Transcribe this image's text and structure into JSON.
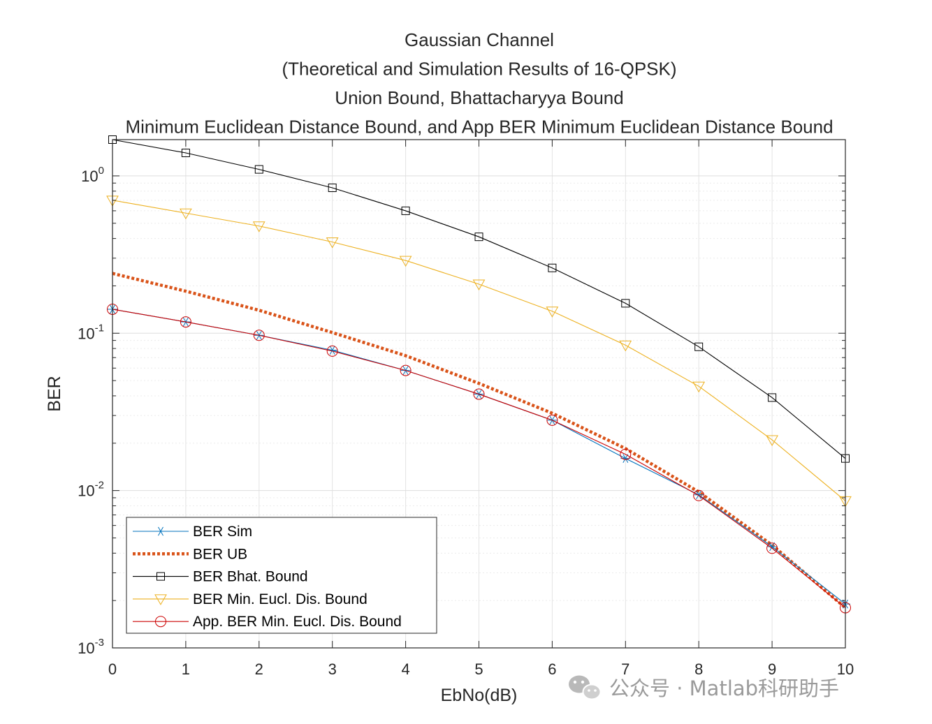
{
  "chart_data": {
    "type": "line",
    "title_lines": [
      "Gaussian Channel",
      "(Theoretical and Simulation Results of 16-QPSK)",
      "Union Bound, Bhattacharyya Bound",
      "Minimum Euclidean Distance Bound, and App BER Minimum Euclidean Distance Bound"
    ],
    "xlabel": "EbNo(dB)",
    "ylabel": "BER",
    "xlim": [
      0,
      10
    ],
    "ylim": [
      0.001,
      1.7
    ],
    "yscale": "log",
    "x_ticks": [
      "0",
      "1",
      "2",
      "3",
      "4",
      "5",
      "6",
      "7",
      "8",
      "9",
      "10"
    ],
    "y_ticks": [
      {
        "value": 1,
        "base": "10",
        "exp": "0"
      },
      {
        "value": 0.1,
        "base": "10",
        "exp": "-1"
      },
      {
        "value": 0.01,
        "base": "10",
        "exp": "-2"
      },
      {
        "value": 0.001,
        "base": "10",
        "exp": "-3"
      }
    ],
    "grid": true,
    "legend_position": "bottom-left",
    "x": [
      0,
      1,
      2,
      3,
      4,
      5,
      6,
      7,
      8,
      9,
      10
    ],
    "series": [
      {
        "name": "BER Sim",
        "color": "#0072BD",
        "marker": "asterisk",
        "line": "solid",
        "values": [
          0.142,
          0.118,
          0.097,
          0.078,
          0.058,
          0.041,
          0.028,
          0.016,
          0.0094,
          0.0044,
          0.0019
        ]
      },
      {
        "name": "BER UB",
        "color": "#D95319",
        "marker": "none",
        "line": "dotted",
        "values": [
          0.24,
          0.185,
          0.14,
          0.101,
          0.072,
          0.048,
          0.031,
          0.0185,
          0.0098,
          0.0045,
          0.0018
        ]
      },
      {
        "name": "BER Bhat. Bound",
        "color": "#000000",
        "marker": "square",
        "line": "solid",
        "values": [
          1.7,
          1.4,
          1.1,
          0.84,
          0.6,
          0.41,
          0.26,
          0.155,
          0.082,
          0.039,
          0.016
        ]
      },
      {
        "name": "BER Min. Eucl. Dis. Bound",
        "color": "#EDB120",
        "marker": "triangle-down",
        "line": "solid",
        "values": [
          0.7,
          0.58,
          0.48,
          0.38,
          0.29,
          0.205,
          0.138,
          0.084,
          0.046,
          0.021,
          0.0086
        ]
      },
      {
        "name": "App. BER Min. Eucl. Dis. Bound",
        "color": "#CC0000",
        "marker": "circle",
        "line": "solid",
        "values": [
          0.142,
          0.118,
          0.097,
          0.077,
          0.058,
          0.041,
          0.028,
          0.017,
          0.0093,
          0.0043,
          0.0018
        ]
      }
    ]
  },
  "watermark": {
    "text": "公众号 · Matlab科研助手",
    "icon": "wechat-icon"
  }
}
